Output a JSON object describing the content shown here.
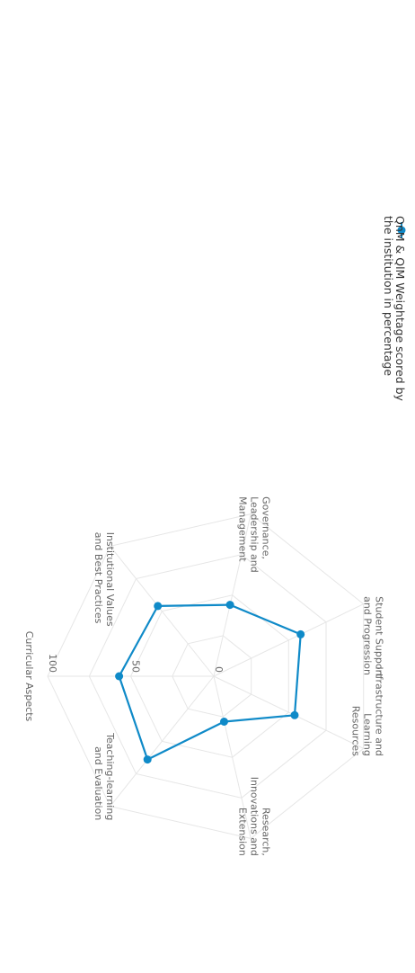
{
  "chart_data": {
    "type": "radar",
    "orientation": "rotated-90-clockwise",
    "categories": [
      [
        "Curricular Aspects"
      ],
      [
        "Teaching-learning",
        "and Evaluation"
      ],
      [
        "Research,",
        "Innovations and",
        "Extension"
      ],
      [
        "Infrastructure and",
        "Learning",
        "Resources"
      ],
      [
        "Student Support",
        "and Progression"
      ],
      [
        "Governance,",
        "Leadership and",
        "Management"
      ],
      [
        "Institutional Values",
        "and Best Practices"
      ]
    ],
    "series": [
      {
        "name": [
          "QnM & QlM Weightage scored by",
          "the institution in percentage"
        ],
        "values": [
          57,
          64,
          28,
          54,
          58,
          44,
          54
        ],
        "color": "#0f8ac8"
      }
    ],
    "rlim": [
      0,
      100
    ],
    "radial_ticks": [
      0,
      50,
      100
    ],
    "gridlines": [
      25,
      50,
      75,
      100
    ],
    "grid": true,
    "grid_color": "#e6e6e6",
    "legend_position": "top-right"
  }
}
